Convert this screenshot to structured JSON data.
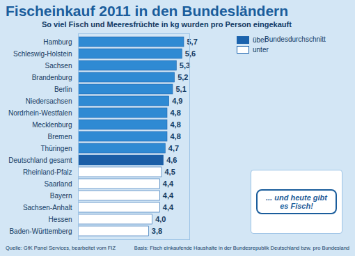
{
  "chart_data": {
    "type": "bar",
    "orientation": "horizontal",
    "title": "Fischeinkauf 2011 in den Bundesländern",
    "subtitle": "So viel Fisch und Meeresfrüchte in kg wurden pro Person eingekauft",
    "categories": [
      "Hamburg",
      "Schleswig-Holstein",
      "Sachsen",
      "Brandenburg",
      "Berlin",
      "Niedersachsen",
      "Nordrhein-Westfalen",
      "Mecklenburg",
      "Bremen",
      "Thüringen",
      "Deutschland gesamt",
      "Rheinland-Pfalz",
      "Saarland",
      "Bayern",
      "Sachsen-Anhalt",
      "Hessen",
      "Baden-Württemberg"
    ],
    "values": [
      5.7,
      5.6,
      5.3,
      5.2,
      5.1,
      4.9,
      4.8,
      4.8,
      4.8,
      4.7,
      4.6,
      4.5,
      4.4,
      4.4,
      4.4,
      4.0,
      3.8
    ],
    "value_labels": [
      "5,7",
      "5,6",
      "5,3",
      "5,2",
      "5,1",
      "4,9",
      "4,8",
      "4,8",
      "4,8",
      "4,7",
      "4,6",
      "4,5",
      "4,4",
      "4,4",
      "4,4",
      "4,0",
      "3,8"
    ],
    "colors": [
      "#2f8ad3",
      "#2f8ad3",
      "#2f8ad3",
      "#2f8ad3",
      "#2f8ad3",
      "#2f8ad3",
      "#2f8ad3",
      "#2f8ad3",
      "#2f8ad3",
      "#2f8ad3",
      "#1b5ea6",
      "#ffffff",
      "#ffffff",
      "#ffffff",
      "#ffffff",
      "#ffffff",
      "#ffffff"
    ],
    "xlim": [
      0,
      6
    ],
    "xticks": [],
    "data_labels": true,
    "tick_labels": "y",
    "grid": false,
    "legend": "top-right",
    "legend_title": "Bundesdurchschnitt",
    "legend_entries": [
      {
        "name": "über",
        "color": "#1b63ad"
      },
      {
        "name": "unter",
        "color": "#ffffff"
      }
    ],
    "annotations": [
      "... und heute gibt es Fisch!"
    ],
    "source": "Quelle: GfK Panel Services, bearbeitet vom FIZ",
    "note": "Basis: Fisch einkaufende Haushalte in der Bundesrepublik Deutschland bzw. pro Bundesland"
  }
}
